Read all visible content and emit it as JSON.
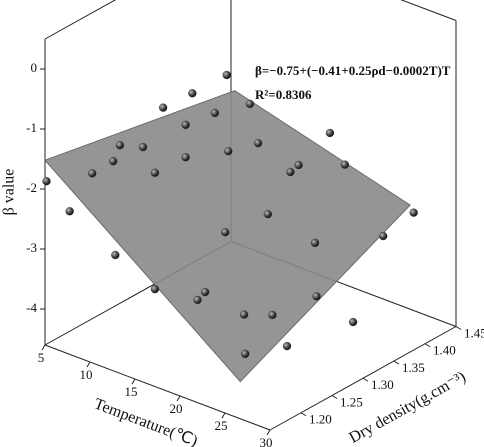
{
  "chart_data": {
    "type": "scatter3d",
    "xlabel": "Temperature(℃)",
    "ylabel": "Dry density(g.cm⁻³)",
    "zlabel": "β  value",
    "annotations": [
      "β=−0.75+(−0.41+0.25ρd−0.0002T)T",
      "R²=0.8306"
    ],
    "xlim": [
      5,
      30
    ],
    "ylim": [
      1.15,
      1.45
    ],
    "zlim": [
      -4.6,
      0.5
    ],
    "xticks": [
      5,
      10,
      15,
      20,
      25,
      30
    ],
    "yticks": [
      {
        "value": 1.2,
        "label": "1.20"
      },
      {
        "value": 1.25,
        "label": "1.25"
      },
      {
        "value": 1.3,
        "label": "1.30"
      },
      {
        "value": 1.35,
        "label": "1.35"
      },
      {
        "value": 1.4,
        "label": "1.40"
      },
      {
        "value": 1.45,
        "label": "1.45"
      }
    ],
    "zticks": [
      -4,
      -3,
      -2,
      -1,
      0
    ],
    "surface": {
      "color": "#8a8a8a",
      "x": [
        5,
        5,
        30,
        26.7
      ],
      "y": [
        1.15,
        1.456,
        1.376,
        1.15
      ],
      "z": [
        -1.52,
        -2.12,
        -2.15,
        -3.98
      ]
    },
    "points": {
      "color": "#333333",
      "x": [
        16.1,
        14.0,
        12.2,
        15.4,
        17.5,
        13.6,
        9.6,
        11.0,
        16.2,
        18.0,
        22.4,
        13.6,
        9.2,
        11.7,
        7.9,
        20.5,
        20.0,
        23.3,
        5.1,
        6.5,
        18.6,
        16.0,
        21.5,
        27.5,
        25.7,
        9.3,
        11.7,
        14.8,
        14.3,
        21.6,
        17.2,
        18.9,
        23.8,
        25.0,
        23.8
      ],
      "y": [
        1.282,
        1.257,
        1.236,
        1.273,
        1.299,
        1.252,
        1.204,
        1.221,
        1.283,
        1.305,
        1.357,
        1.252,
        1.199,
        1.23,
        1.184,
        1.334,
        1.328,
        1.368,
        1.151,
        1.168,
        1.312,
        1.281,
        1.346,
        1.418,
        1.395,
        1.201,
        1.23,
        1.266,
        1.261,
        1.347,
        1.294,
        1.315,
        1.374,
        1.25,
        1.2
      ],
      "z": [
        -0.23,
        -0.51,
        -0.73,
        -0.85,
        -0.73,
        -1.03,
        -1.32,
        -1.37,
        -1.5,
        -1.39,
        -1.27,
        -1.57,
        -1.58,
        -1.81,
        -1.77,
        -1.78,
        -1.89,
        -1.81,
        -1.87,
        -2.39,
        -2.58,
        -2.85,
        -3.09,
        -2.66,
        -3.02,
        -3.15,
        -3.75,
        -3.83,
        -3.96,
        -3.98,
        -4.23,
        -4.26,
        -4.44,
        -4.06,
        -3.97
      ]
    }
  }
}
